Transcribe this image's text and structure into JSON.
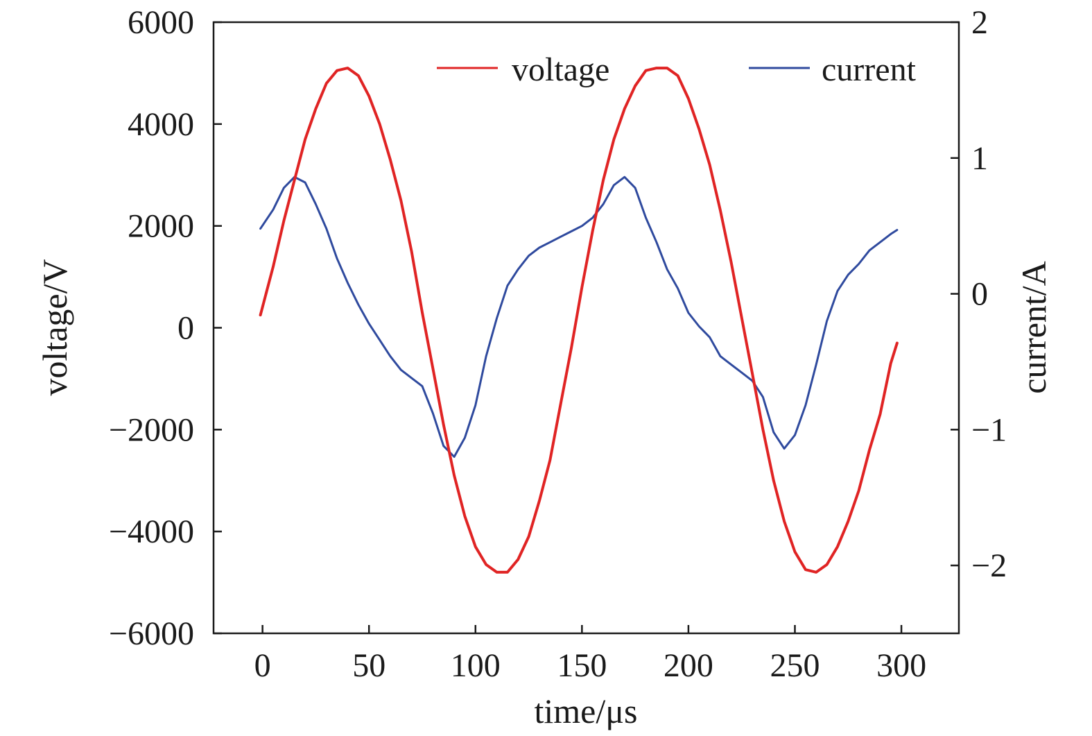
{
  "chart_data": {
    "type": "line",
    "title": "",
    "xlabel": "time/μs",
    "ylabel": "voltage/V",
    "y2label": "current/A",
    "xlim": [
      -23,
      327
    ],
    "ylim": [
      -6000,
      6000
    ],
    "y2lim": [
      -2.5,
      2
    ],
    "xticks": [
      0,
      50,
      100,
      150,
      200,
      250,
      300
    ],
    "yticks": [
      -6000,
      -4000,
      -2000,
      0,
      2000,
      4000,
      6000
    ],
    "y2ticks": [
      -2,
      -1,
      0,
      1,
      2
    ],
    "xtick_labels": [
      "0",
      "50",
      "100",
      "150",
      "200",
      "250",
      "300"
    ],
    "ytick_labels": [
      "−6000",
      "−4000",
      "−2000",
      "0",
      "2000",
      "4000",
      "6000"
    ],
    "y2tick_labels": [
      "−2",
      "−1",
      "0",
      "1",
      "2"
    ],
    "grid": false,
    "legend_position": "top-right",
    "series": [
      {
        "name": "voltage",
        "axis": "left",
        "color": "#e02424",
        "x": [
          -1,
          5,
          10,
          15,
          20,
          25,
          30,
          35,
          40,
          45,
          50,
          55,
          60,
          65,
          70,
          75,
          80,
          85,
          90,
          95,
          100,
          105,
          110,
          115,
          120,
          125,
          130,
          135,
          140,
          145,
          150,
          155,
          160,
          165,
          170,
          175,
          180,
          185,
          190,
          195,
          200,
          205,
          210,
          215,
          220,
          225,
          230,
          235,
          240,
          245,
          250,
          255,
          260,
          265,
          270,
          275,
          280,
          285,
          290,
          295,
          298
        ],
        "y": [
          250,
          1200,
          2100,
          2900,
          3700,
          4300,
          4800,
          5050,
          5100,
          4950,
          4550,
          4000,
          3300,
          2500,
          1500,
          300,
          -800,
          -1900,
          -2900,
          -3700,
          -4300,
          -4650,
          -4800,
          -4800,
          -4550,
          -4100,
          -3400,
          -2600,
          -1500,
          -400,
          800,
          1900,
          2900,
          3700,
          4300,
          4750,
          5050,
          5100,
          5100,
          4950,
          4500,
          3900,
          3200,
          2300,
          1300,
          200,
          -900,
          -2000,
          -3000,
          -3800,
          -4400,
          -4750,
          -4800,
          -4650,
          -4300,
          -3800,
          -3200,
          -2400,
          -1700,
          -700,
          -300
        ]
      },
      {
        "name": "current",
        "axis": "right",
        "color": "#2f4a9e",
        "x": [
          -1,
          5,
          10,
          15,
          20,
          25,
          30,
          35,
          40,
          45,
          50,
          55,
          60,
          65,
          70,
          75,
          80,
          85,
          90,
          95,
          100,
          105,
          110,
          115,
          120,
          125,
          130,
          135,
          140,
          145,
          150,
          155,
          160,
          165,
          170,
          175,
          180,
          185,
          190,
          195,
          200,
          205,
          210,
          215,
          220,
          225,
          230,
          235,
          240,
          245,
          250,
          255,
          260,
          265,
          270,
          275,
          280,
          285,
          290,
          295,
          298
        ],
        "y": [
          0.48,
          0.62,
          0.78,
          0.86,
          0.82,
          0.66,
          0.48,
          0.26,
          0.08,
          -0.08,
          -0.22,
          -0.34,
          -0.46,
          -0.56,
          -0.62,
          -0.68,
          -0.88,
          -1.12,
          -1.2,
          -1.06,
          -0.82,
          -0.46,
          -0.18,
          0.06,
          0.18,
          0.28,
          0.34,
          0.38,
          0.42,
          0.46,
          0.5,
          0.56,
          0.66,
          0.8,
          0.86,
          0.78,
          0.56,
          0.38,
          0.18,
          0.04,
          -0.14,
          -0.24,
          -0.32,
          -0.46,
          -0.52,
          -0.58,
          -0.64,
          -0.76,
          -1.02,
          -1.14,
          -1.04,
          -0.82,
          -0.52,
          -0.2,
          0.02,
          0.14,
          0.22,
          0.32,
          0.38,
          0.44,
          0.47
        ]
      }
    ]
  }
}
